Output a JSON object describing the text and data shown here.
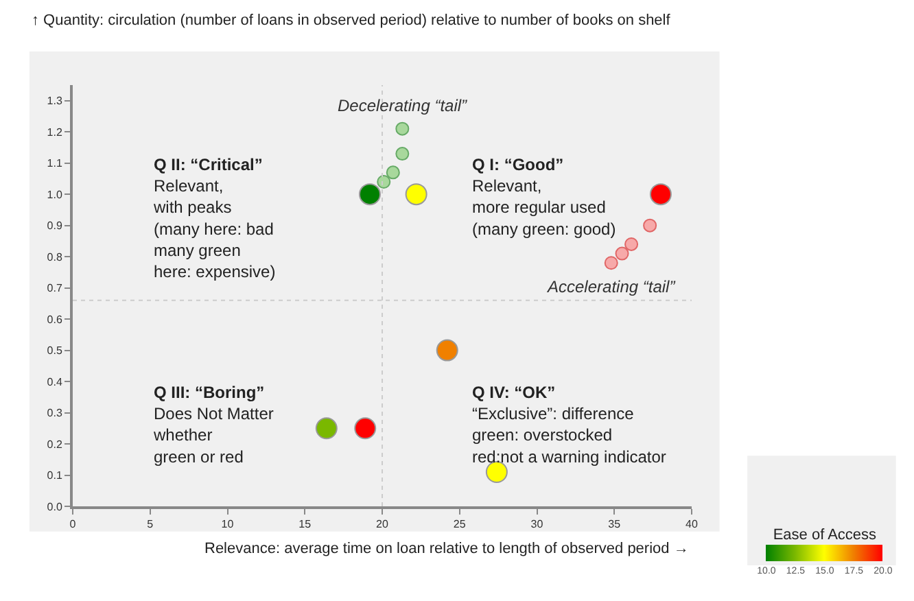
{
  "chart_data": {
    "type": "scatter",
    "xlabel": "Relevance: average time on loan relative to length of observed period →",
    "ylabel": "↑ Quantity: circulation (number of loans in observed period) relative to number of books on shelf",
    "clabel": "Ease of Access",
    "series": [
      {
        "x": [
          19.2,
          22.2,
          38.0,
          24.2,
          27.4,
          16.4,
          18.9
        ],
        "values": [
          1.0,
          1.0,
          1.0,
          0.5,
          0.11,
          0.25,
          0.25
        ],
        "cvalues": [
          10,
          15,
          20,
          17.5,
          15,
          12.5,
          20
        ],
        "colors": [
          "#008000",
          "#ffff00",
          "#ff0000",
          "#f08000",
          "#ffff00",
          "#7ab800",
          "#ff0000"
        ]
      },
      {
        "x": [
          20.1,
          20.7,
          21.3,
          21.3
        ],
        "values": [
          1.04,
          1.07,
          1.13,
          1.21
        ],
        "color": "#a8d89c"
      },
      {
        "x": [
          34.8,
          35.5,
          36.1,
          37.3
        ],
        "values": [
          0.78,
          0.81,
          0.84,
          0.9
        ],
        "color": "#f7a9a9"
      }
    ],
    "clim": [
      10,
      20
    ],
    "cticks": [
      {
        "value": 20,
        "label": "20.0"
      },
      {
        "value": 17.5,
        "label": "17.5"
      },
      {
        "value": 15,
        "label": "15.0"
      },
      {
        "value": 12.5,
        "label": "12.5"
      },
      {
        "value": 10,
        "label": "10.0"
      }
    ],
    "xlim": [
      0,
      40
    ],
    "xticks": [
      0,
      5,
      10,
      15,
      20,
      25,
      30,
      35,
      40
    ],
    "ylim": [
      0,
      1.35
    ],
    "yticks": [
      {
        "value": 0,
        "label": "0.0"
      },
      {
        "value": 0.1,
        "label": "0.1"
      },
      {
        "value": 0.2,
        "label": "0.2"
      },
      {
        "value": 0.3,
        "label": "0.3"
      },
      {
        "value": 0.4,
        "label": "0.4"
      },
      {
        "value": 0.5,
        "label": "0.5"
      },
      {
        "value": 0.6,
        "label": "0.6"
      },
      {
        "value": 0.7,
        "label": "0.7"
      },
      {
        "value": 0.8,
        "label": "0.8"
      },
      {
        "value": 0.9,
        "label": "0.9"
      },
      {
        "value": 1.0,
        "label": "1.0"
      },
      {
        "value": 1.1,
        "label": "1.1"
      },
      {
        "value": 1.2,
        "label": "1.2"
      },
      {
        "value": 1.3,
        "label": "1.3"
      }
    ],
    "ref_lines": [
      {
        "axis": "x",
        "value": 20,
        "line_style": "dotted",
        "color": "#cccccc"
      },
      {
        "axis": "y",
        "value": 0.66,
        "line_style": "dotted",
        "color": "#cccccc"
      }
    ],
    "marker": "circle",
    "grid": false,
    "annotations": [
      {
        "text": "Decelerating “tail”",
        "x": 21.3,
        "y": 1.21
      },
      {
        "text": "Accelerating “tail”",
        "x": 34.8,
        "y": 0.78
      },
      "Q II: “Critical”\nRelevant,\nwith peaks\n(many here: bad\nmany green\nhere: expensive)",
      "Q I: “Good”\nRelevant,\nmore regular used\n(many green: good)",
      "Q III: “Boring”\nDoes Not Matter\nwhether\ngreen or red",
      "Q IV: “OK”\n“Exclusive”: difference\ngreen: overstocked\nred:not a warning indicator"
    ]
  }
}
